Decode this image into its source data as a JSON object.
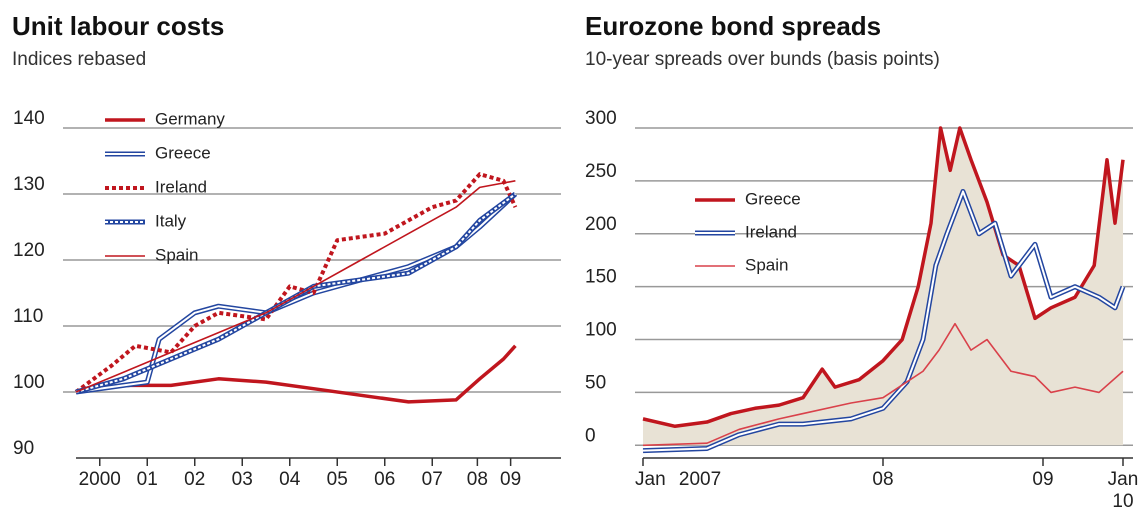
{
  "chart_data": [
    {
      "type": "line",
      "title": "Unit labour costs",
      "subtitle": "Indices rebased",
      "ylim": [
        90,
        140
      ],
      "yticks": [
        90,
        100,
        110,
        120,
        130,
        140
      ],
      "xlim": [
        2000,
        2010
      ],
      "xticks": [
        {
          "value": 2000.5,
          "label": "2000"
        },
        {
          "value": 2001.5,
          "label": "01"
        },
        {
          "value": 2002.5,
          "label": "02"
        },
        {
          "value": 2003.5,
          "label": "03"
        },
        {
          "value": 2004.5,
          "label": "04"
        },
        {
          "value": 2005.5,
          "label": "05"
        },
        {
          "value": 2006.5,
          "label": "06"
        },
        {
          "value": 2007.5,
          "label": "07"
        },
        {
          "value": 2008.45,
          "label": "08"
        },
        {
          "value": 2009.15,
          "label": "09"
        }
      ],
      "grid": true,
      "series": [
        {
          "name": "Germany",
          "color": "#c0161e",
          "style": "thick",
          "x": [
            2000,
            2001,
            2002,
            2003,
            2004,
            2005,
            2006,
            2007,
            2008,
            2008.5,
            2009,
            2009.25
          ],
          "values": [
            100,
            101,
            101,
            102,
            101.5,
            100.5,
            99.5,
            98.5,
            98.8,
            102,
            105,
            107
          ]
        },
        {
          "name": "Greece",
          "color": "#2346a0",
          "style": "double",
          "x": [
            2000,
            2001,
            2001.5,
            2001.75,
            2002.5,
            2003,
            2004,
            2005,
            2006,
            2006.5,
            2007,
            2008,
            2008.5,
            2009.25
          ],
          "values": [
            100,
            101,
            101.5,
            108,
            112,
            113,
            112,
            115,
            117,
            118,
            119,
            122,
            125,
            130
          ]
        },
        {
          "name": "Ireland",
          "color": "#c0161e",
          "style": "dotted",
          "x": [
            2000,
            2000.75,
            2001.25,
            2002,
            2002.5,
            2003,
            2004,
            2004.5,
            2005,
            2005.5,
            2006.5,
            2007,
            2007.5,
            2008,
            2008.5,
            2009,
            2009.25
          ],
          "values": [
            100,
            104,
            107,
            106,
            110,
            112,
            111,
            116,
            115,
            123,
            124,
            126,
            128,
            129,
            133,
            132,
            128
          ]
        },
        {
          "name": "Italy",
          "color": "#2346a0",
          "style": "double-dotted",
          "x": [
            2000,
            2001,
            2002,
            2003,
            2004,
            2005,
            2006,
            2007,
            2008,
            2008.5,
            2009.25
          ],
          "values": [
            100,
            102,
            105,
            108,
            112,
            116,
            117,
            118,
            122,
            126,
            130
          ]
        },
        {
          "name": "Spain",
          "color": "#c0161e",
          "style": "thin",
          "x": [
            2000,
            2001,
            2002,
            2003,
            2004,
            2005,
            2006,
            2007,
            2008,
            2008.5,
            2009.25
          ],
          "values": [
            100,
            103,
            106,
            109,
            112,
            116,
            120,
            124,
            128,
            131,
            132
          ]
        }
      ]
    },
    {
      "type": "line",
      "title": "Eurozone bond spreads",
      "subtitle": "10-year spreads over bunds (basis points)",
      "ylim": [
        -12,
        300
      ],
      "yticks": [
        0,
        50,
        100,
        150,
        200,
        250,
        300
      ],
      "xlim": [
        2007,
        2010
      ],
      "xticks": [
        {
          "value": 2007,
          "label": "Jan 2007"
        },
        {
          "value": 2008.5,
          "label": "08"
        },
        {
          "value": 2009.5,
          "label": "09"
        },
        {
          "value": 2010,
          "label": "Jan 10"
        }
      ],
      "grid": true,
      "fill": "#e8e2d5",
      "series": [
        {
          "name": "Greece",
          "color": "#c0161e",
          "style": "thick",
          "x": [
            2007,
            2007.2,
            2007.4,
            2007.55,
            2007.7,
            2007.85,
            2008,
            2008.12,
            2008.2,
            2008.35,
            2008.5,
            2008.62,
            2008.72,
            2008.8,
            2008.86,
            2008.92,
            2008.98,
            2009.05,
            2009.15,
            2009.25,
            2009.35,
            2009.45,
            2009.55,
            2009.7,
            2009.82,
            2009.9,
            2009.95,
            2010
          ],
          "values": [
            25,
            18,
            22,
            30,
            35,
            38,
            45,
            72,
            55,
            62,
            80,
            100,
            150,
            210,
            300,
            260,
            300,
            270,
            230,
            180,
            170,
            120,
            130,
            140,
            170,
            270,
            210,
            270
          ]
        },
        {
          "name": "Ireland",
          "color": "#2346a0",
          "style": "double",
          "x": [
            2007,
            2007.4,
            2007.6,
            2007.85,
            2008,
            2008.3,
            2008.5,
            2008.65,
            2008.75,
            2008.83,
            2008.9,
            2009,
            2009.1,
            2009.2,
            2009.3,
            2009.45,
            2009.55,
            2009.7,
            2009.85,
            2009.95,
            2010
          ],
          "values": [
            -5,
            -3,
            10,
            20,
            20,
            25,
            35,
            60,
            100,
            170,
            200,
            240,
            200,
            210,
            160,
            190,
            140,
            150,
            140,
            130,
            150
          ]
        },
        {
          "name": "Spain",
          "color": "#d9414a",
          "style": "thin",
          "x": [
            2007,
            2007.4,
            2007.6,
            2007.85,
            2008,
            2008.3,
            2008.5,
            2008.65,
            2008.75,
            2008.85,
            2008.95,
            2009.05,
            2009.15,
            2009.3,
            2009.45,
            2009.55,
            2009.7,
            2009.85,
            2010
          ],
          "values": [
            0,
            2,
            15,
            25,
            30,
            40,
            45,
            60,
            70,
            90,
            115,
            90,
            100,
            70,
            65,
            50,
            55,
            50,
            70
          ]
        }
      ]
    }
  ]
}
